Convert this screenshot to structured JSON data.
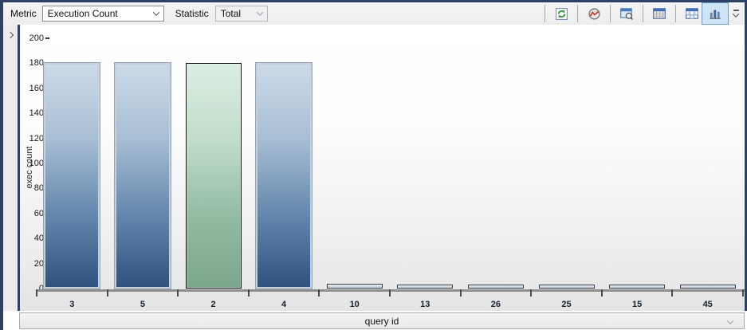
{
  "toolbar": {
    "metric_label": "Metric",
    "metric_value": "Execution Count",
    "statistic_label": "Statistic",
    "statistic_value": "Total",
    "view_buttons": [
      "refresh-icon",
      "performance-gauge-icon",
      "zoom-window-icon",
      "grid-view-icon",
      "table-view-icon",
      "bar-chart-view-icon",
      "toolbar-overflow-icon"
    ],
    "selected_view": "bar-chart-view"
  },
  "sidebar": {
    "state": "collapsed"
  },
  "chart_data": {
    "type": "bar",
    "title": "",
    "categories": [
      "3",
      "5",
      "2",
      "4",
      "10",
      "13",
      "26",
      "25",
      "15",
      "45"
    ],
    "values": [
      180,
      180,
      180,
      180,
      4,
      3,
      3,
      3,
      3,
      3
    ],
    "highlighted_index": 2,
    "xlabel": "query id",
    "ylabel": "exec count",
    "ylim": [
      0,
      200
    ],
    "ytick_step": 20,
    "grid": false,
    "legend": "none",
    "colors": {
      "bar_gradient": [
        "#ccdae8",
        "#a8bed4",
        "#6589ae",
        "#2f527f"
      ],
      "highlight_gradient": [
        "#daeee1",
        "#c2ddcc",
        "#94bda4",
        "#7aa68b"
      ],
      "small_bar_gradient": [
        "#e9eff5",
        "#bfccda"
      ],
      "selected_button_bg": "#cfe4f4",
      "window_border": "#2e4164"
    }
  },
  "footer": {
    "xaxis_field": "query id"
  }
}
